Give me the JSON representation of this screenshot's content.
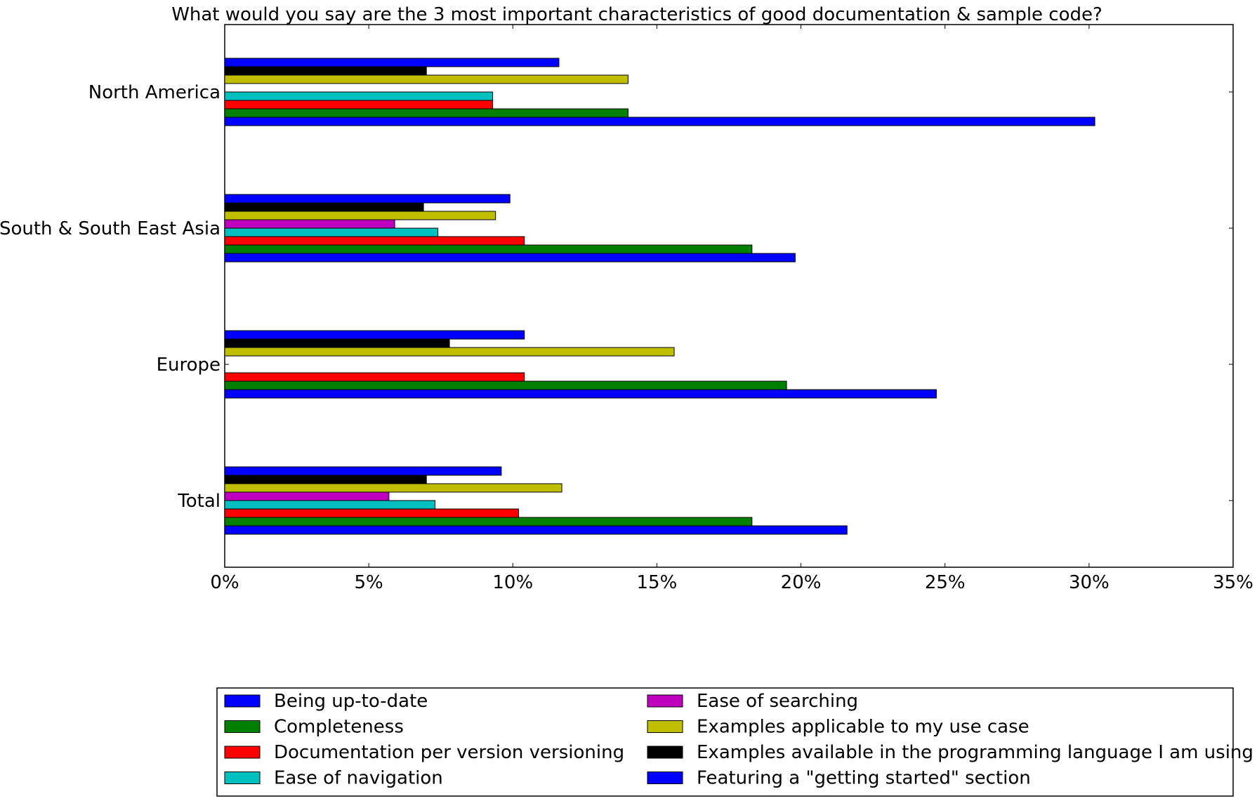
{
  "chart_data": {
    "type": "bar",
    "orientation": "horizontal",
    "title": "What would you say are the 3 most important characteristics of good documentation & sample code?",
    "categories": [
      "North America",
      "South & South East Asia",
      "Europe",
      "Total"
    ],
    "xlim": [
      0,
      35
    ],
    "xticks": [
      0,
      5,
      10,
      15,
      20,
      25,
      30,
      35
    ],
    "xtick_labels": [
      "0%",
      "5%",
      "10%",
      "15%",
      "20%",
      "25%",
      "30%",
      "35%"
    ],
    "grid": false,
    "legend_position": "bottom",
    "series": [
      {
        "name": "Being up-to-date",
        "color": "#0000ff",
        "values": [
          30.2,
          19.8,
          24.7,
          21.6
        ]
      },
      {
        "name": "Completeness",
        "color": "#008000",
        "values": [
          14.0,
          18.3,
          19.5,
          18.3
        ]
      },
      {
        "name": "Documentation per version versioning",
        "color": "#ff0000",
        "values": [
          9.3,
          10.4,
          10.4,
          10.2
        ]
      },
      {
        "name": "Ease of navigation",
        "color": "#00bfbf",
        "values": [
          9.3,
          7.4,
          0,
          7.3
        ]
      },
      {
        "name": "Ease of searching",
        "color": "#bf00bf",
        "values": [
          0,
          5.9,
          0,
          5.7
        ]
      },
      {
        "name": "Examples applicable to my use case",
        "color": "#bfbf00",
        "values": [
          14.0,
          9.4,
          15.6,
          11.7
        ]
      },
      {
        "name": "Examples available in the programming language I am using",
        "color": "#000000",
        "values": [
          7.0,
          6.9,
          7.8,
          7.0
        ]
      },
      {
        "name": "Featuring a \"getting started\" section",
        "color": "#0000ff",
        "values": [
          11.6,
          9.9,
          10.4,
          9.6
        ]
      }
    ]
  }
}
